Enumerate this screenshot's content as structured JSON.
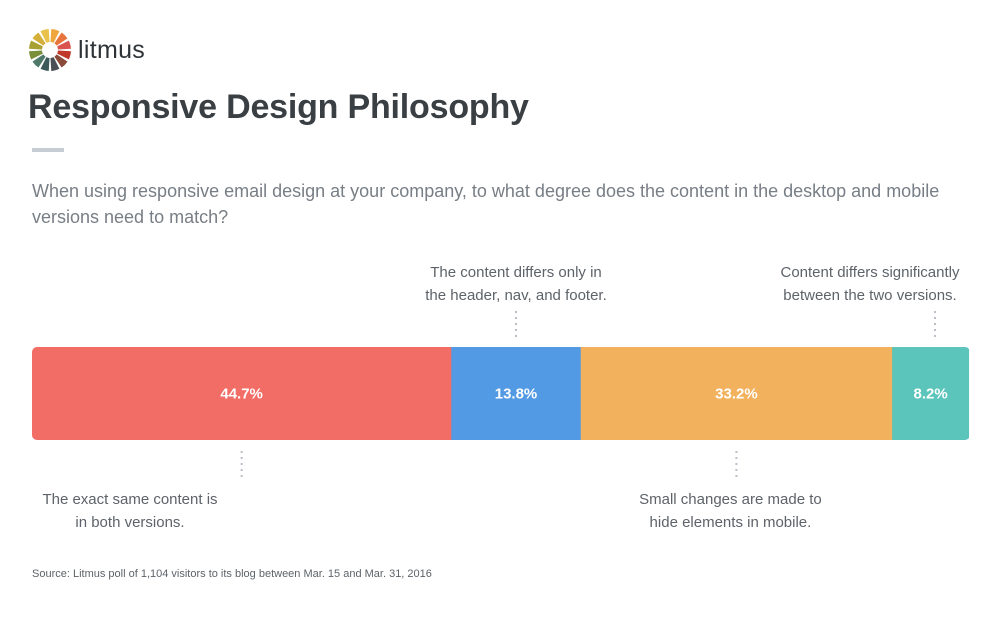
{
  "brand": {
    "name": "litmus",
    "logo_colors": [
      "#f0a63e",
      "#e8743b",
      "#d9534f",
      "#c0392b",
      "#8a4b3a",
      "#4a4f55",
      "#3d5a5b",
      "#4f7a6a",
      "#7a8f3a",
      "#a8a030",
      "#d4b03a",
      "#e8c24a"
    ]
  },
  "header": {
    "title": "Responsive Design Philosophy",
    "question": "When using responsive email design at your company, to what degree does the content in the desktop and mobile versions need to match?"
  },
  "chart_data": {
    "type": "bar",
    "orientation": "horizontal-stacked",
    "unit": "%",
    "total": 100,
    "segments": [
      {
        "value": 44.7,
        "label": "44.7%",
        "color": "#f26d65",
        "annotation": [
          "The exact same content is",
          "in both versions."
        ],
        "annotation_position": "bottom"
      },
      {
        "value": 13.8,
        "label": "13.8%",
        "color": "#529ae3",
        "annotation": [
          "The content differs only in",
          "the header, nav, and footer."
        ],
        "annotation_position": "top"
      },
      {
        "value": 33.2,
        "label": "33.2%",
        "color": "#f2b15c",
        "annotation": [
          "Small changes are made to",
          "hide elements in mobile."
        ],
        "annotation_position": "bottom"
      },
      {
        "value": 8.2,
        "label": "8.2%",
        "color": "#5bc4bb",
        "annotation": [
          "Content differs significantly",
          "between the two versions."
        ],
        "annotation_position": "top"
      }
    ]
  },
  "footer": {
    "source": "Source: Litmus poll of 1,104 visitors to its blog between Mar. 15 and Mar. 31, 2016"
  }
}
